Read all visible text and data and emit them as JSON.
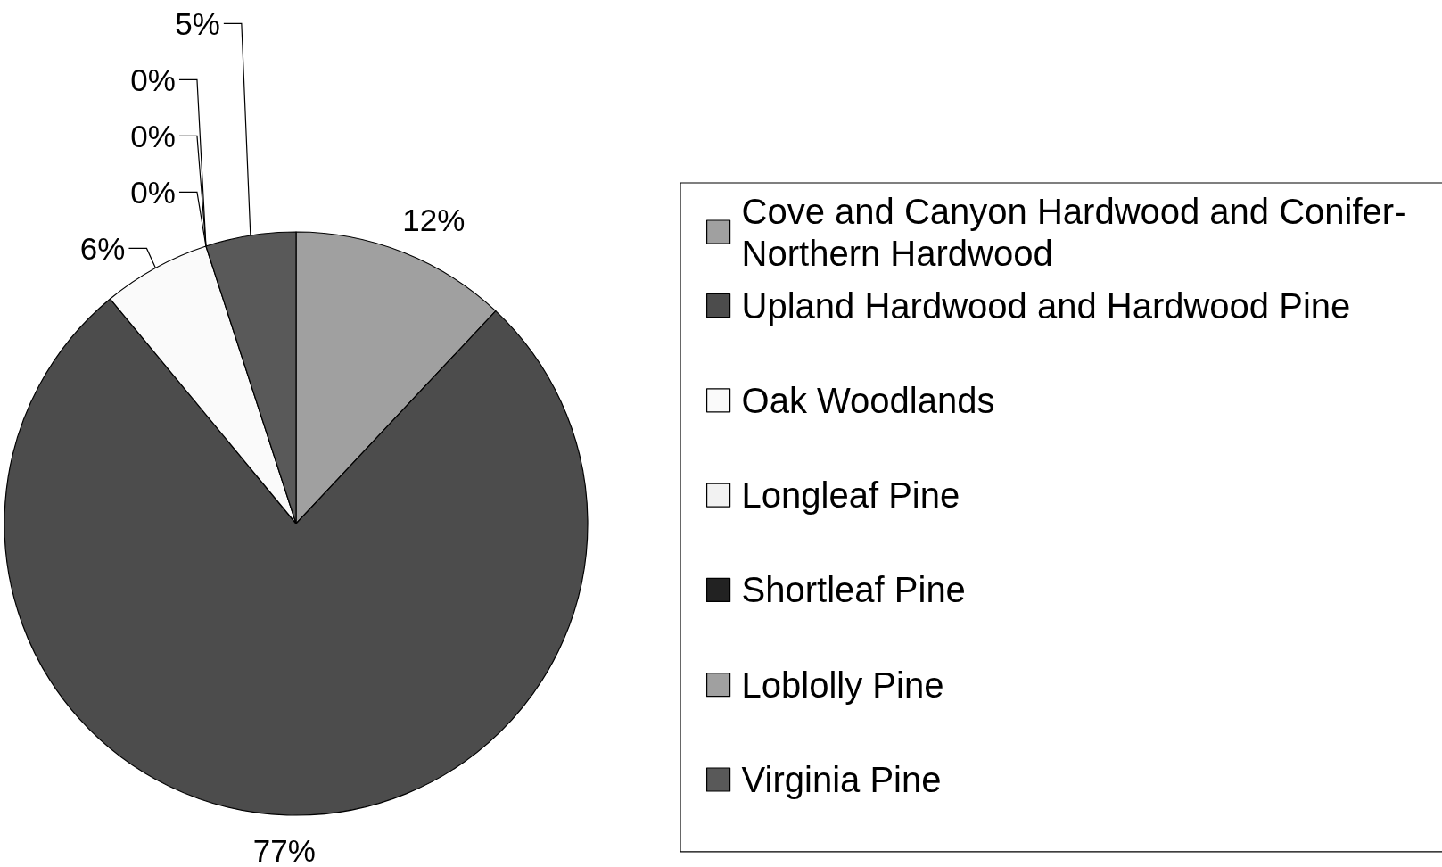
{
  "chart_data": {
    "type": "pie",
    "categories": [
      "Cove and Canyon Hardwood and Conifer-Northern Hardwood",
      "Upland Hardwood and Hardwood Pine",
      "Oak Woodlands",
      "Longleaf Pine",
      "Shortleaf Pine",
      "Loblolly Pine",
      "Virginia Pine"
    ],
    "values": [
      12,
      77,
      6,
      0,
      0,
      0,
      5
    ],
    "colors": [
      "#a0a0a0",
      "#4c4c4c",
      "#fafafa",
      "#f2f2f2",
      "#222222",
      "#a0a0a0",
      "#595959"
    ],
    "value_labels": [
      "12%",
      "77%",
      "6%",
      "0%",
      "0%",
      "0%",
      "5%"
    ],
    "legend": "right"
  }
}
